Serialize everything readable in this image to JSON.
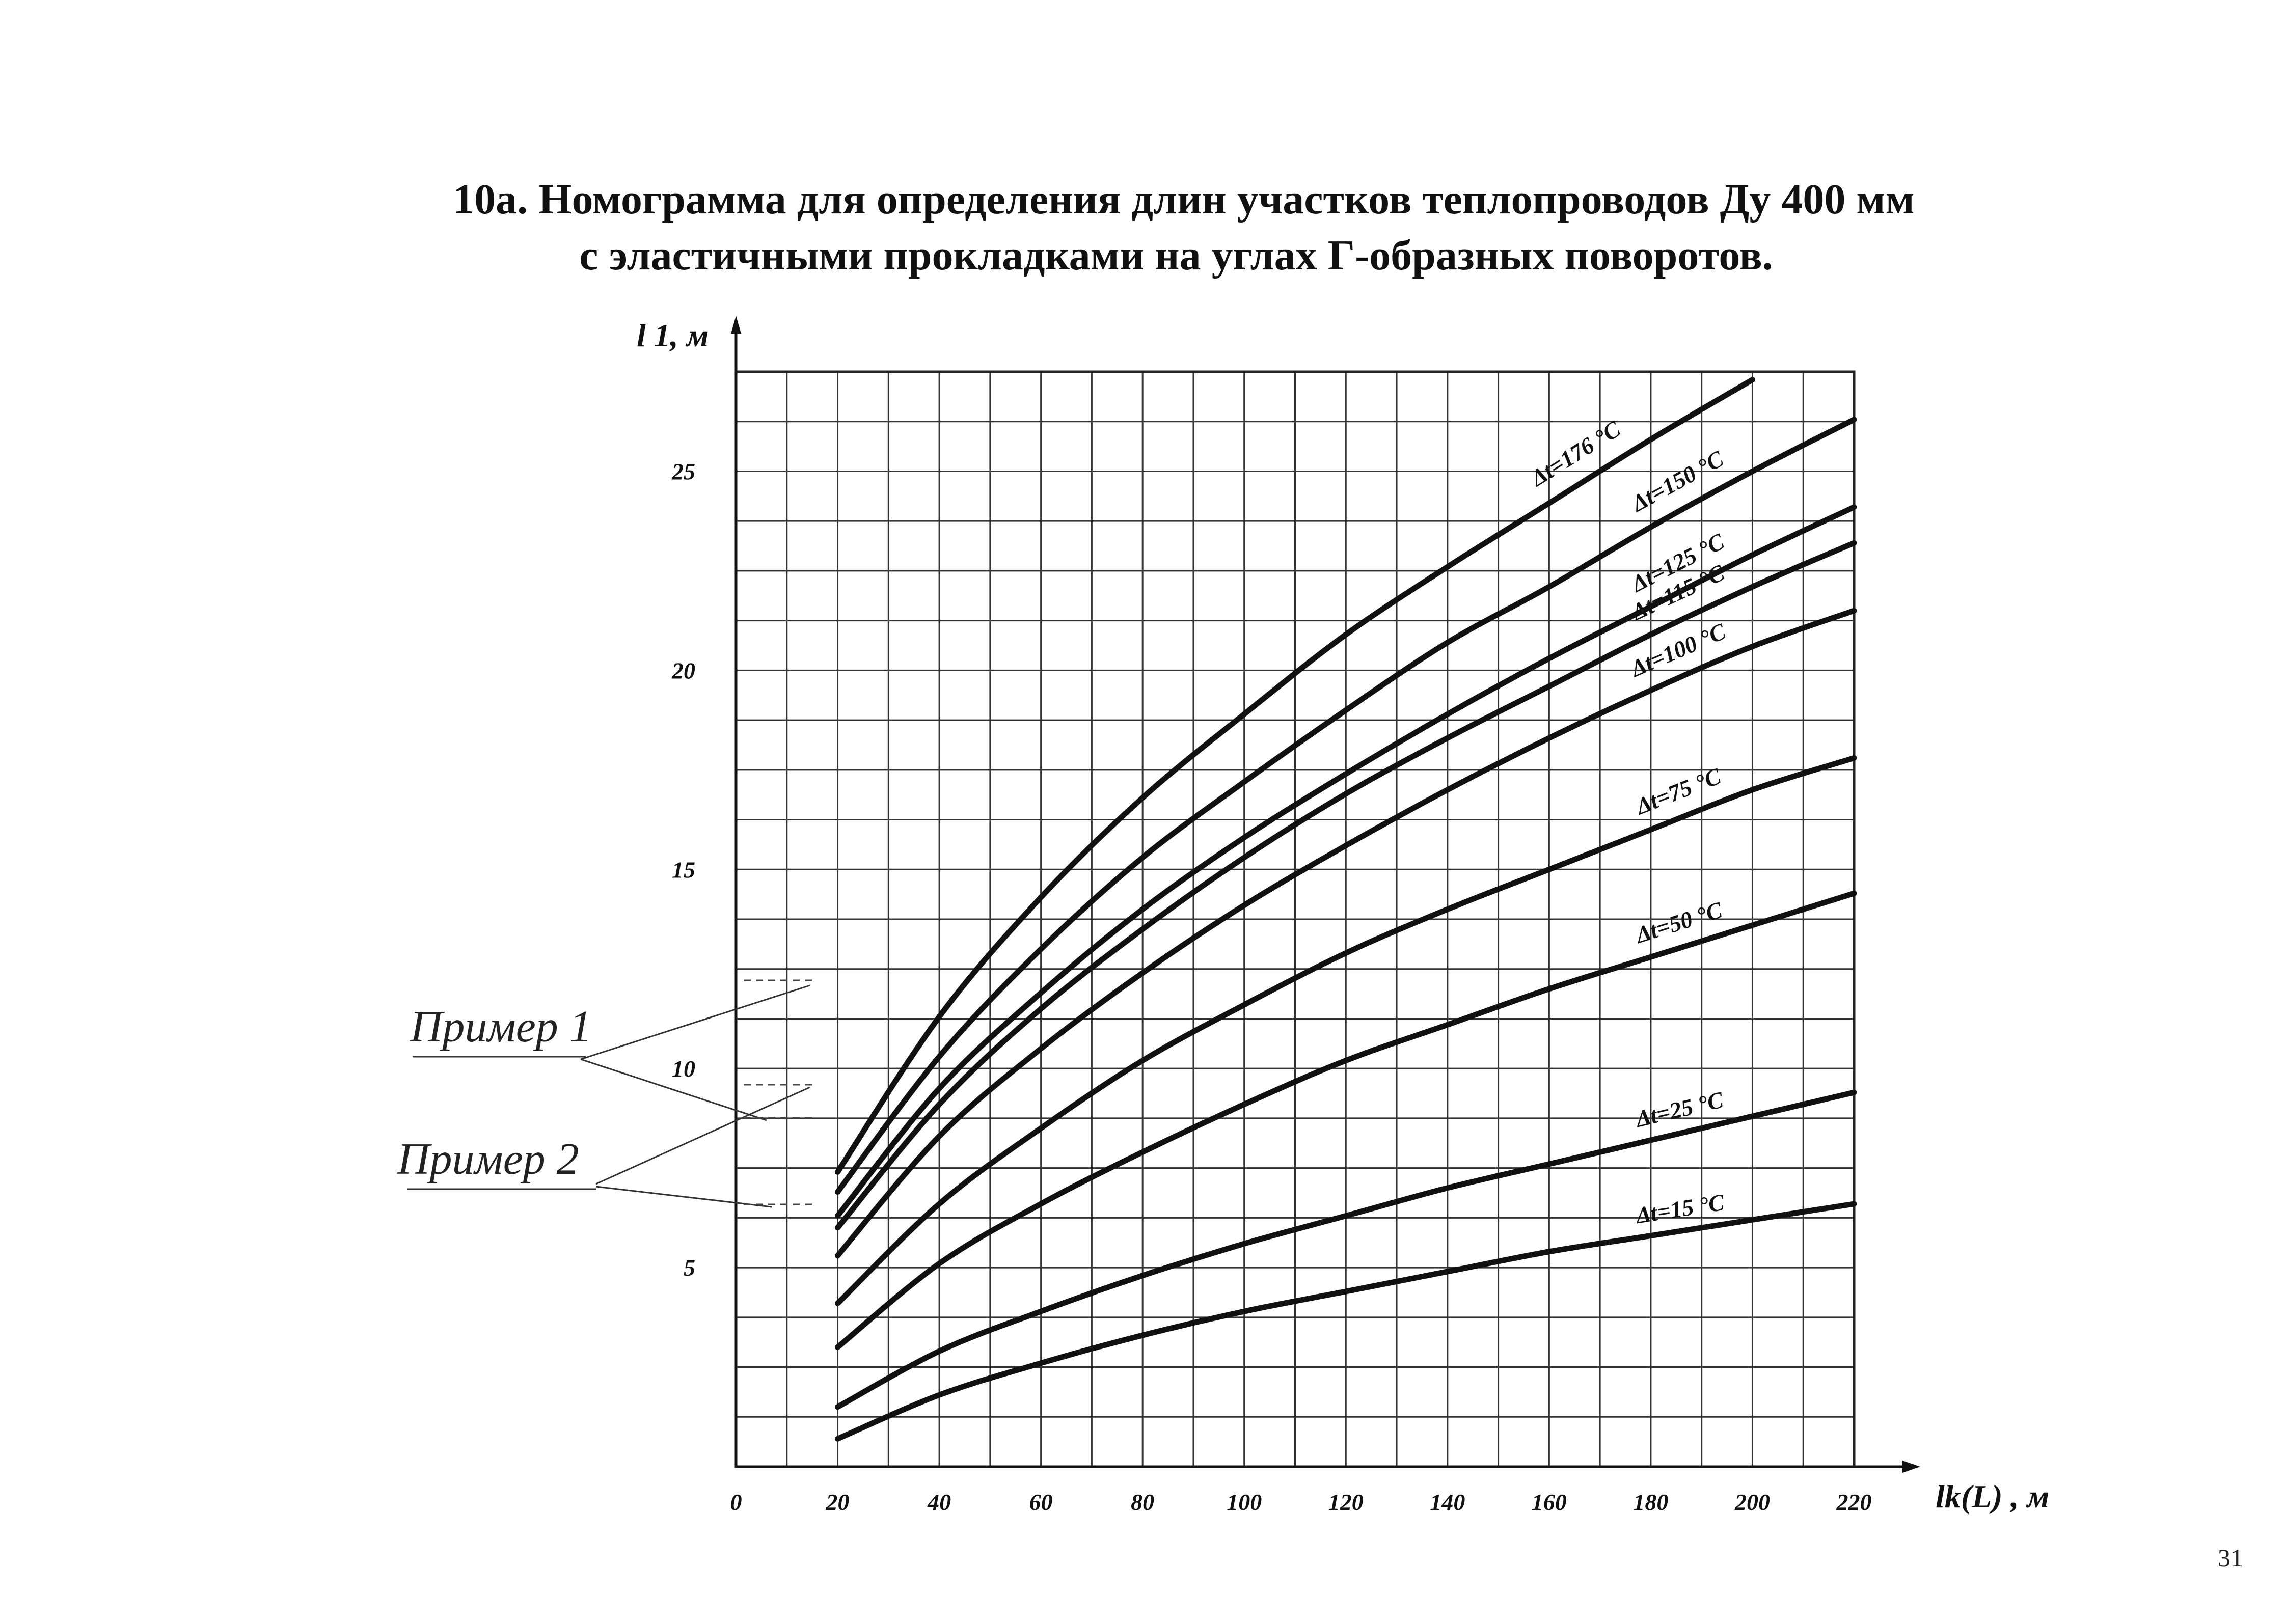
{
  "page": {
    "title_line1": "10а. Номограмма для определения длин участков теплопроводов Ду 400 мм",
    "title_line2": "с эластичными прокладками на углах Г-образных поворотов.",
    "page_number": "31"
  },
  "chart_data": {
    "type": "line",
    "title": "10а. Номограмма для определения длин участков теплопроводов Ду 400 мм с эластичными прокладками на углах Г-образных поворотов.",
    "xlabel": "lk(L) , м",
    "ylabel": "l 1, м",
    "xlim": [
      0,
      220
    ],
    "ylim": [
      0,
      27.5
    ],
    "x_ticks": [
      "0",
      "20",
      "40",
      "60",
      "80",
      "100",
      "120",
      "140",
      "160",
      "180",
      "200",
      "220"
    ],
    "y_ticks": [
      "5",
      "10",
      "15",
      "20",
      "25"
    ],
    "grid": true,
    "series": [
      {
        "name": "Δt=176 °C",
        "x": [
          20,
          40,
          60,
          80,
          100,
          120,
          140,
          160,
          180,
          200
        ],
        "y": [
          7.4,
          11.3,
          14.3,
          16.8,
          18.9,
          20.9,
          22.6,
          24.2,
          25.8,
          27.3
        ]
      },
      {
        "name": "Δt=150 °C",
        "x": [
          20,
          40,
          60,
          80,
          100,
          120,
          140,
          160,
          180,
          200,
          220
        ],
        "y": [
          6.9,
          10.3,
          13.0,
          15.3,
          17.2,
          19.0,
          20.7,
          22.1,
          23.6,
          25.0,
          26.3
        ]
      },
      {
        "name": "Δt=125 °C",
        "x": [
          20,
          40,
          60,
          80,
          100,
          120,
          140,
          160,
          180,
          200,
          220
        ],
        "y": [
          6.3,
          9.5,
          11.9,
          14.0,
          15.8,
          17.4,
          18.9,
          20.3,
          21.6,
          22.9,
          24.1
        ]
      },
      {
        "name": "Δt=115 °C",
        "x": [
          20,
          40,
          60,
          80,
          100,
          120,
          140,
          160,
          180,
          200,
          220
        ],
        "y": [
          6.0,
          9.1,
          11.5,
          13.5,
          15.3,
          16.9,
          18.3,
          19.6,
          20.9,
          22.1,
          23.2
        ]
      },
      {
        "name": "Δt=100 °C",
        "x": [
          20,
          40,
          60,
          80,
          100,
          120,
          140,
          160,
          180,
          200,
          220
        ],
        "y": [
          5.3,
          8.3,
          10.5,
          12.4,
          14.1,
          15.6,
          17.0,
          18.3,
          19.5,
          20.6,
          21.5
        ]
      },
      {
        "name": "Δt=75 °C",
        "x": [
          20,
          40,
          60,
          80,
          100,
          120,
          140,
          160,
          180,
          200,
          220
        ],
        "y": [
          4.1,
          6.6,
          8.5,
          10.2,
          11.6,
          12.9,
          14.0,
          15.0,
          16.0,
          17.0,
          17.8
        ]
      },
      {
        "name": "Δt=50 °C",
        "x": [
          20,
          40,
          60,
          80,
          100,
          120,
          140,
          160,
          180,
          200,
          220
        ],
        "y": [
          3.0,
          5.1,
          6.6,
          7.9,
          9.1,
          10.2,
          11.1,
          12.0,
          12.8,
          13.6,
          14.4
        ]
      },
      {
        "name": "Δt=25 °C",
        "x": [
          20,
          40,
          60,
          80,
          100,
          120,
          140,
          160,
          180,
          200,
          220
        ],
        "y": [
          1.5,
          2.9,
          3.9,
          4.8,
          5.6,
          6.3,
          7.0,
          7.6,
          8.2,
          8.8,
          9.4
        ]
      },
      {
        "name": "Δt=15 °C",
        "x": [
          20,
          40,
          60,
          80,
          100,
          120,
          140,
          160,
          180,
          200,
          220
        ],
        "y": [
          0.7,
          1.8,
          2.6,
          3.3,
          3.9,
          4.4,
          4.9,
          5.4,
          5.8,
          6.2,
          6.6
        ]
      }
    ],
    "annotations": [
      "Пример 1",
      "Пример 2"
    ]
  }
}
